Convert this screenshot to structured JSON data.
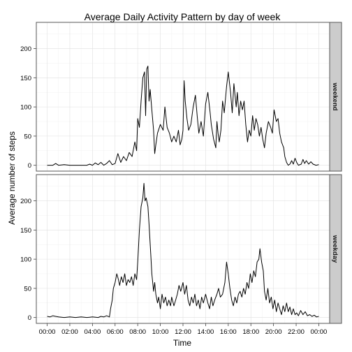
{
  "chart_data": {
    "type": "line",
    "title": "Average Daily Activity Pattern by day of week",
    "xlabel": "Time",
    "ylabel": "Average number of steps",
    "x_ticks": [
      "00:00",
      "02:00",
      "04:00",
      "06:00",
      "08:00",
      "10:00",
      "12:00",
      "14:00",
      "16:00",
      "18:00",
      "20:00",
      "22:00",
      "00:00"
    ],
    "x_range_hours": [
      0,
      24
    ],
    "grid": true,
    "line_color": "#000000",
    "panels": [
      {
        "name": "weekend",
        "ylim": [
          -10,
          245
        ],
        "y_ticks": [
          0,
          50,
          100,
          150,
          200
        ],
        "series": [
          {
            "x": 0,
            "y": 0
          },
          {
            "x": 0.5,
            "y": 0
          },
          {
            "x": 0.75,
            "y": 3
          },
          {
            "x": 1,
            "y": 0
          },
          {
            "x": 1.5,
            "y": 1
          },
          {
            "x": 2,
            "y": 0
          },
          {
            "x": 2.5,
            "y": 0
          },
          {
            "x": 3,
            "y": 0
          },
          {
            "x": 3.5,
            "y": 0
          },
          {
            "x": 3.75,
            "y": 2
          },
          {
            "x": 4,
            "y": 0
          },
          {
            "x": 4.25,
            "y": 4
          },
          {
            "x": 4.5,
            "y": 1
          },
          {
            "x": 4.75,
            "y": 5
          },
          {
            "x": 5,
            "y": 0
          },
          {
            "x": 5.25,
            "y": 3
          },
          {
            "x": 5.5,
            "y": 8
          },
          {
            "x": 5.75,
            "y": 1
          },
          {
            "x": 6,
            "y": 3
          },
          {
            "x": 6.25,
            "y": 20
          },
          {
            "x": 6.5,
            "y": 5
          },
          {
            "x": 6.75,
            "y": 15
          },
          {
            "x": 7,
            "y": 8
          },
          {
            "x": 7.25,
            "y": 22
          },
          {
            "x": 7.5,
            "y": 15
          },
          {
            "x": 7.75,
            "y": 40
          },
          {
            "x": 7.9,
            "y": 25
          },
          {
            "x": 8,
            "y": 80
          },
          {
            "x": 8.15,
            "y": 65
          },
          {
            "x": 8.3,
            "y": 110
          },
          {
            "x": 8.45,
            "y": 150
          },
          {
            "x": 8.6,
            "y": 160
          },
          {
            "x": 8.7,
            "y": 85
          },
          {
            "x": 8.8,
            "y": 165
          },
          {
            "x": 8.9,
            "y": 170
          },
          {
            "x": 9,
            "y": 110
          },
          {
            "x": 9.1,
            "y": 130
          },
          {
            "x": 9.25,
            "y": 95
          },
          {
            "x": 9.4,
            "y": 60
          },
          {
            "x": 9.5,
            "y": 20
          },
          {
            "x": 9.6,
            "y": 35
          },
          {
            "x": 9.75,
            "y": 55
          },
          {
            "x": 10,
            "y": 70
          },
          {
            "x": 10.25,
            "y": 60
          },
          {
            "x": 10.4,
            "y": 100
          },
          {
            "x": 10.6,
            "y": 65
          },
          {
            "x": 10.8,
            "y": 55
          },
          {
            "x": 11,
            "y": 40
          },
          {
            "x": 11.2,
            "y": 50
          },
          {
            "x": 11.4,
            "y": 40
          },
          {
            "x": 11.6,
            "y": 60
          },
          {
            "x": 11.75,
            "y": 35
          },
          {
            "x": 11.9,
            "y": 45
          },
          {
            "x": 12,
            "y": 60
          },
          {
            "x": 12.1,
            "y": 145
          },
          {
            "x": 12.2,
            "y": 110
          },
          {
            "x": 12.35,
            "y": 80
          },
          {
            "x": 12.5,
            "y": 60
          },
          {
            "x": 12.7,
            "y": 70
          },
          {
            "x": 12.9,
            "y": 100
          },
          {
            "x": 13.1,
            "y": 120
          },
          {
            "x": 13.25,
            "y": 85
          },
          {
            "x": 13.4,
            "y": 55
          },
          {
            "x": 13.6,
            "y": 75
          },
          {
            "x": 13.8,
            "y": 50
          },
          {
            "x": 14,
            "y": 105
          },
          {
            "x": 14.2,
            "y": 125
          },
          {
            "x": 14.4,
            "y": 90
          },
          {
            "x": 14.5,
            "y": 70
          },
          {
            "x": 14.7,
            "y": 45
          },
          {
            "x": 14.9,
            "y": 30
          },
          {
            "x": 15,
            "y": 75
          },
          {
            "x": 15.1,
            "y": 55
          },
          {
            "x": 15.2,
            "y": 40
          },
          {
            "x": 15.35,
            "y": 60
          },
          {
            "x": 15.5,
            "y": 110
          },
          {
            "x": 15.65,
            "y": 90
          },
          {
            "x": 15.85,
            "y": 135
          },
          {
            "x": 16,
            "y": 160
          },
          {
            "x": 16.2,
            "y": 125
          },
          {
            "x": 16.35,
            "y": 90
          },
          {
            "x": 16.5,
            "y": 140
          },
          {
            "x": 16.7,
            "y": 100
          },
          {
            "x": 16.8,
            "y": 125
          },
          {
            "x": 16.95,
            "y": 85
          },
          {
            "x": 17.1,
            "y": 110
          },
          {
            "x": 17.25,
            "y": 95
          },
          {
            "x": 17.4,
            "y": 110
          },
          {
            "x": 17.55,
            "y": 70
          },
          {
            "x": 17.7,
            "y": 40
          },
          {
            "x": 17.85,
            "y": 60
          },
          {
            "x": 18,
            "y": 50
          },
          {
            "x": 18.15,
            "y": 85
          },
          {
            "x": 18.3,
            "y": 60
          },
          {
            "x": 18.45,
            "y": 80
          },
          {
            "x": 18.6,
            "y": 70
          },
          {
            "x": 18.75,
            "y": 50
          },
          {
            "x": 18.9,
            "y": 65
          },
          {
            "x": 19.05,
            "y": 45
          },
          {
            "x": 19.2,
            "y": 30
          },
          {
            "x": 19.35,
            "y": 55
          },
          {
            "x": 19.55,
            "y": 75
          },
          {
            "x": 19.75,
            "y": 65
          },
          {
            "x": 19.9,
            "y": 55
          },
          {
            "x": 20.05,
            "y": 95
          },
          {
            "x": 20.25,
            "y": 75
          },
          {
            "x": 20.4,
            "y": 80
          },
          {
            "x": 20.55,
            "y": 55
          },
          {
            "x": 20.7,
            "y": 40
          },
          {
            "x": 20.9,
            "y": 30
          },
          {
            "x": 21,
            "y": 15
          },
          {
            "x": 21.15,
            "y": 5
          },
          {
            "x": 21.3,
            "y": 0
          },
          {
            "x": 21.45,
            "y": 2
          },
          {
            "x": 21.6,
            "y": 8
          },
          {
            "x": 21.75,
            "y": 2
          },
          {
            "x": 21.9,
            "y": 12
          },
          {
            "x": 22.05,
            "y": 5
          },
          {
            "x": 22.2,
            "y": 0
          },
          {
            "x": 22.45,
            "y": 2
          },
          {
            "x": 22.6,
            "y": 10
          },
          {
            "x": 22.75,
            "y": 3
          },
          {
            "x": 22.9,
            "y": 8
          },
          {
            "x": 23.1,
            "y": 2
          },
          {
            "x": 23.3,
            "y": 6
          },
          {
            "x": 23.5,
            "y": 2
          },
          {
            "x": 23.75,
            "y": 0
          },
          {
            "x": 24,
            "y": 1
          }
        ]
      },
      {
        "name": "weekday",
        "ylim": [
          -10,
          245
        ],
        "y_ticks": [
          0,
          50,
          100,
          150,
          200
        ],
        "series": [
          {
            "x": 0,
            "y": 2
          },
          {
            "x": 0.25,
            "y": 1
          },
          {
            "x": 0.5,
            "y": 3
          },
          {
            "x": 0.75,
            "y": 2
          },
          {
            "x": 1,
            "y": 1
          },
          {
            "x": 1.5,
            "y": 0
          },
          {
            "x": 2,
            "y": 1
          },
          {
            "x": 2.5,
            "y": 0
          },
          {
            "x": 3,
            "y": 1
          },
          {
            "x": 3.5,
            "y": 0
          },
          {
            "x": 4,
            "y": 1
          },
          {
            "x": 4.5,
            "y": 0
          },
          {
            "x": 4.75,
            "y": 2
          },
          {
            "x": 5,
            "y": 1
          },
          {
            "x": 5.25,
            "y": 3
          },
          {
            "x": 5.5,
            "y": 1
          },
          {
            "x": 5.6,
            "y": 15
          },
          {
            "x": 5.75,
            "y": 30
          },
          {
            "x": 5.85,
            "y": 50
          },
          {
            "x": 6,
            "y": 60
          },
          {
            "x": 6.15,
            "y": 75
          },
          {
            "x": 6.3,
            "y": 65
          },
          {
            "x": 6.4,
            "y": 55
          },
          {
            "x": 6.55,
            "y": 70
          },
          {
            "x": 6.7,
            "y": 60
          },
          {
            "x": 6.85,
            "y": 75
          },
          {
            "x": 7,
            "y": 55
          },
          {
            "x": 7.15,
            "y": 65
          },
          {
            "x": 7.3,
            "y": 60
          },
          {
            "x": 7.45,
            "y": 70
          },
          {
            "x": 7.6,
            "y": 55
          },
          {
            "x": 7.75,
            "y": 75
          },
          {
            "x": 7.9,
            "y": 65
          },
          {
            "x": 8,
            "y": 95
          },
          {
            "x": 8.15,
            "y": 150
          },
          {
            "x": 8.3,
            "y": 190
          },
          {
            "x": 8.45,
            "y": 205
          },
          {
            "x": 8.55,
            "y": 230
          },
          {
            "x": 8.65,
            "y": 200
          },
          {
            "x": 8.75,
            "y": 205
          },
          {
            "x": 8.9,
            "y": 190
          },
          {
            "x": 9,
            "y": 160
          },
          {
            "x": 9.15,
            "y": 110
          },
          {
            "x": 9.25,
            "y": 75
          },
          {
            "x": 9.4,
            "y": 45
          },
          {
            "x": 9.5,
            "y": 60
          },
          {
            "x": 9.6,
            "y": 40
          },
          {
            "x": 9.75,
            "y": 25
          },
          {
            "x": 9.85,
            "y": 35
          },
          {
            "x": 10,
            "y": 15
          },
          {
            "x": 10.15,
            "y": 40
          },
          {
            "x": 10.3,
            "y": 25
          },
          {
            "x": 10.45,
            "y": 35
          },
          {
            "x": 10.6,
            "y": 20
          },
          {
            "x": 10.75,
            "y": 30
          },
          {
            "x": 10.9,
            "y": 20
          },
          {
            "x": 11,
            "y": 35
          },
          {
            "x": 11.2,
            "y": 20
          },
          {
            "x": 11.35,
            "y": 30
          },
          {
            "x": 11.5,
            "y": 40
          },
          {
            "x": 11.65,
            "y": 55
          },
          {
            "x": 11.8,
            "y": 45
          },
          {
            "x": 12,
            "y": 60
          },
          {
            "x": 12.15,
            "y": 40
          },
          {
            "x": 12.3,
            "y": 55
          },
          {
            "x": 12.45,
            "y": 30
          },
          {
            "x": 12.6,
            "y": 20
          },
          {
            "x": 12.75,
            "y": 35
          },
          {
            "x": 12.9,
            "y": 25
          },
          {
            "x": 13.05,
            "y": 40
          },
          {
            "x": 13.2,
            "y": 20
          },
          {
            "x": 13.35,
            "y": 30
          },
          {
            "x": 13.5,
            "y": 15
          },
          {
            "x": 13.65,
            "y": 35
          },
          {
            "x": 13.8,
            "y": 25
          },
          {
            "x": 14,
            "y": 40
          },
          {
            "x": 14.2,
            "y": 25
          },
          {
            "x": 14.35,
            "y": 15
          },
          {
            "x": 14.5,
            "y": 35
          },
          {
            "x": 14.65,
            "y": 20
          },
          {
            "x": 14.8,
            "y": 30
          },
          {
            "x": 15,
            "y": 40
          },
          {
            "x": 15.15,
            "y": 50
          },
          {
            "x": 15.3,
            "y": 35
          },
          {
            "x": 15.5,
            "y": 40
          },
          {
            "x": 15.7,
            "y": 60
          },
          {
            "x": 15.85,
            "y": 95
          },
          {
            "x": 16,
            "y": 75
          },
          {
            "x": 16.15,
            "y": 50
          },
          {
            "x": 16.3,
            "y": 30
          },
          {
            "x": 16.45,
            "y": 20
          },
          {
            "x": 16.6,
            "y": 35
          },
          {
            "x": 16.75,
            "y": 25
          },
          {
            "x": 16.9,
            "y": 40
          },
          {
            "x": 17.05,
            "y": 45
          },
          {
            "x": 17.2,
            "y": 35
          },
          {
            "x": 17.35,
            "y": 50
          },
          {
            "x": 17.5,
            "y": 40
          },
          {
            "x": 17.65,
            "y": 60
          },
          {
            "x": 17.8,
            "y": 50
          },
          {
            "x": 17.95,
            "y": 75
          },
          {
            "x": 18.1,
            "y": 60
          },
          {
            "x": 18.25,
            "y": 80
          },
          {
            "x": 18.4,
            "y": 70
          },
          {
            "x": 18.55,
            "y": 95
          },
          {
            "x": 18.7,
            "y": 100
          },
          {
            "x": 18.8,
            "y": 118
          },
          {
            "x": 18.95,
            "y": 95
          },
          {
            "x": 19.1,
            "y": 80
          },
          {
            "x": 19.2,
            "y": 45
          },
          {
            "x": 19.35,
            "y": 30
          },
          {
            "x": 19.5,
            "y": 50
          },
          {
            "x": 19.65,
            "y": 25
          },
          {
            "x": 19.8,
            "y": 35
          },
          {
            "x": 19.95,
            "y": 15
          },
          {
            "x": 20.1,
            "y": 30
          },
          {
            "x": 20.25,
            "y": 10
          },
          {
            "x": 20.4,
            "y": 25
          },
          {
            "x": 20.55,
            "y": 15
          },
          {
            "x": 20.7,
            "y": 5
          },
          {
            "x": 20.85,
            "y": 20
          },
          {
            "x": 21,
            "y": 10
          },
          {
            "x": 21.15,
            "y": 25
          },
          {
            "x": 21.3,
            "y": 10
          },
          {
            "x": 21.45,
            "y": 18
          },
          {
            "x": 21.6,
            "y": 5
          },
          {
            "x": 21.75,
            "y": 15
          },
          {
            "x": 21.9,
            "y": 5
          },
          {
            "x": 22.05,
            "y": 8
          },
          {
            "x": 22.2,
            "y": 3
          },
          {
            "x": 22.4,
            "y": 12
          },
          {
            "x": 22.6,
            "y": 5
          },
          {
            "x": 22.8,
            "y": 10
          },
          {
            "x": 23,
            "y": 3
          },
          {
            "x": 23.2,
            "y": 5
          },
          {
            "x": 23.4,
            "y": 2
          },
          {
            "x": 23.6,
            "y": 4
          },
          {
            "x": 23.8,
            "y": 1
          },
          {
            "x": 24,
            "y": 2
          }
        ]
      }
    ]
  }
}
